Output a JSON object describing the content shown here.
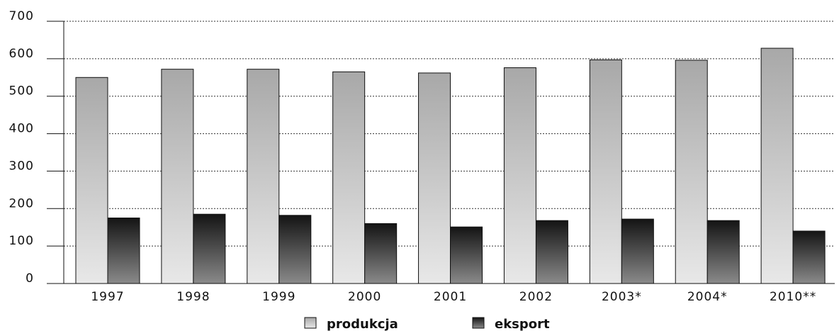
{
  "chart_data": {
    "type": "bar",
    "categories": [
      "1997",
      "1998",
      "1999",
      "2000",
      "2001",
      "2002",
      "2003*",
      "2004*",
      "2010**"
    ],
    "series": [
      {
        "name": "produkcja",
        "values": [
          550,
          572,
          572,
          565,
          562,
          576,
          597,
          596,
          628
        ]
      },
      {
        "name": "eksport",
        "values": [
          175,
          185,
          182,
          160,
          151,
          168,
          172,
          168,
          140
        ]
      }
    ],
    "ylim": [
      0,
      700
    ],
    "yticks": [
      0,
      100,
      200,
      300,
      400,
      500,
      600,
      700
    ],
    "grid": true,
    "legend_position": "bottom-center",
    "colors": {
      "produkcja_top": "#a8a8a8",
      "produkcja_bottom": "#e8e8e8",
      "eksport_top": "#141414",
      "eksport_bottom": "#8a8a8a"
    }
  }
}
